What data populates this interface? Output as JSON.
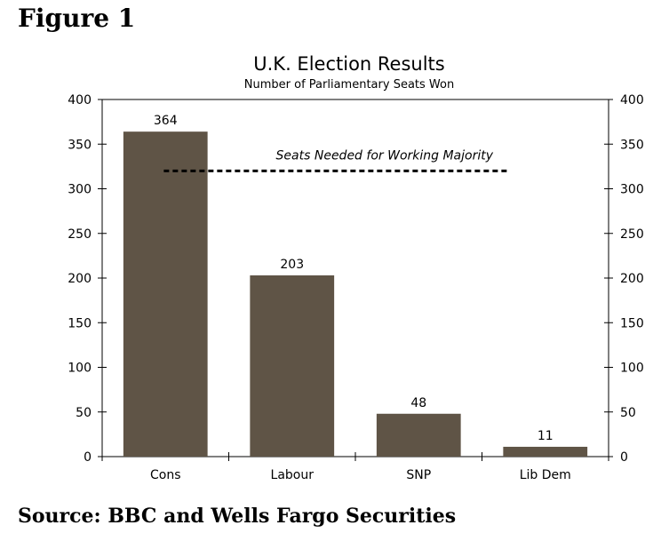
{
  "figure_label": "Figure 1",
  "source": "Source: BBC and Wells Fargo Securities",
  "chart_data": {
    "type": "bar",
    "title": "U.K. Election Results",
    "subtitle": "Number of Parliamentary Seats Won",
    "categories": [
      "Cons",
      "Labour",
      "SNP",
      "Lib Dem"
    ],
    "values": [
      364,
      203,
      48,
      11
    ],
    "data_labels": [
      "364",
      "203",
      "48",
      "11"
    ],
    "ylim": [
      0,
      400
    ],
    "yticks": [
      0,
      50,
      100,
      150,
      200,
      250,
      300,
      350,
      400
    ],
    "secondary_y_axis": true,
    "bar_color": "#5f5446",
    "reference_line": {
      "label": "Seats Needed for Working Majority",
      "value": 320,
      "style": "dashed"
    },
    "grid": false
  }
}
